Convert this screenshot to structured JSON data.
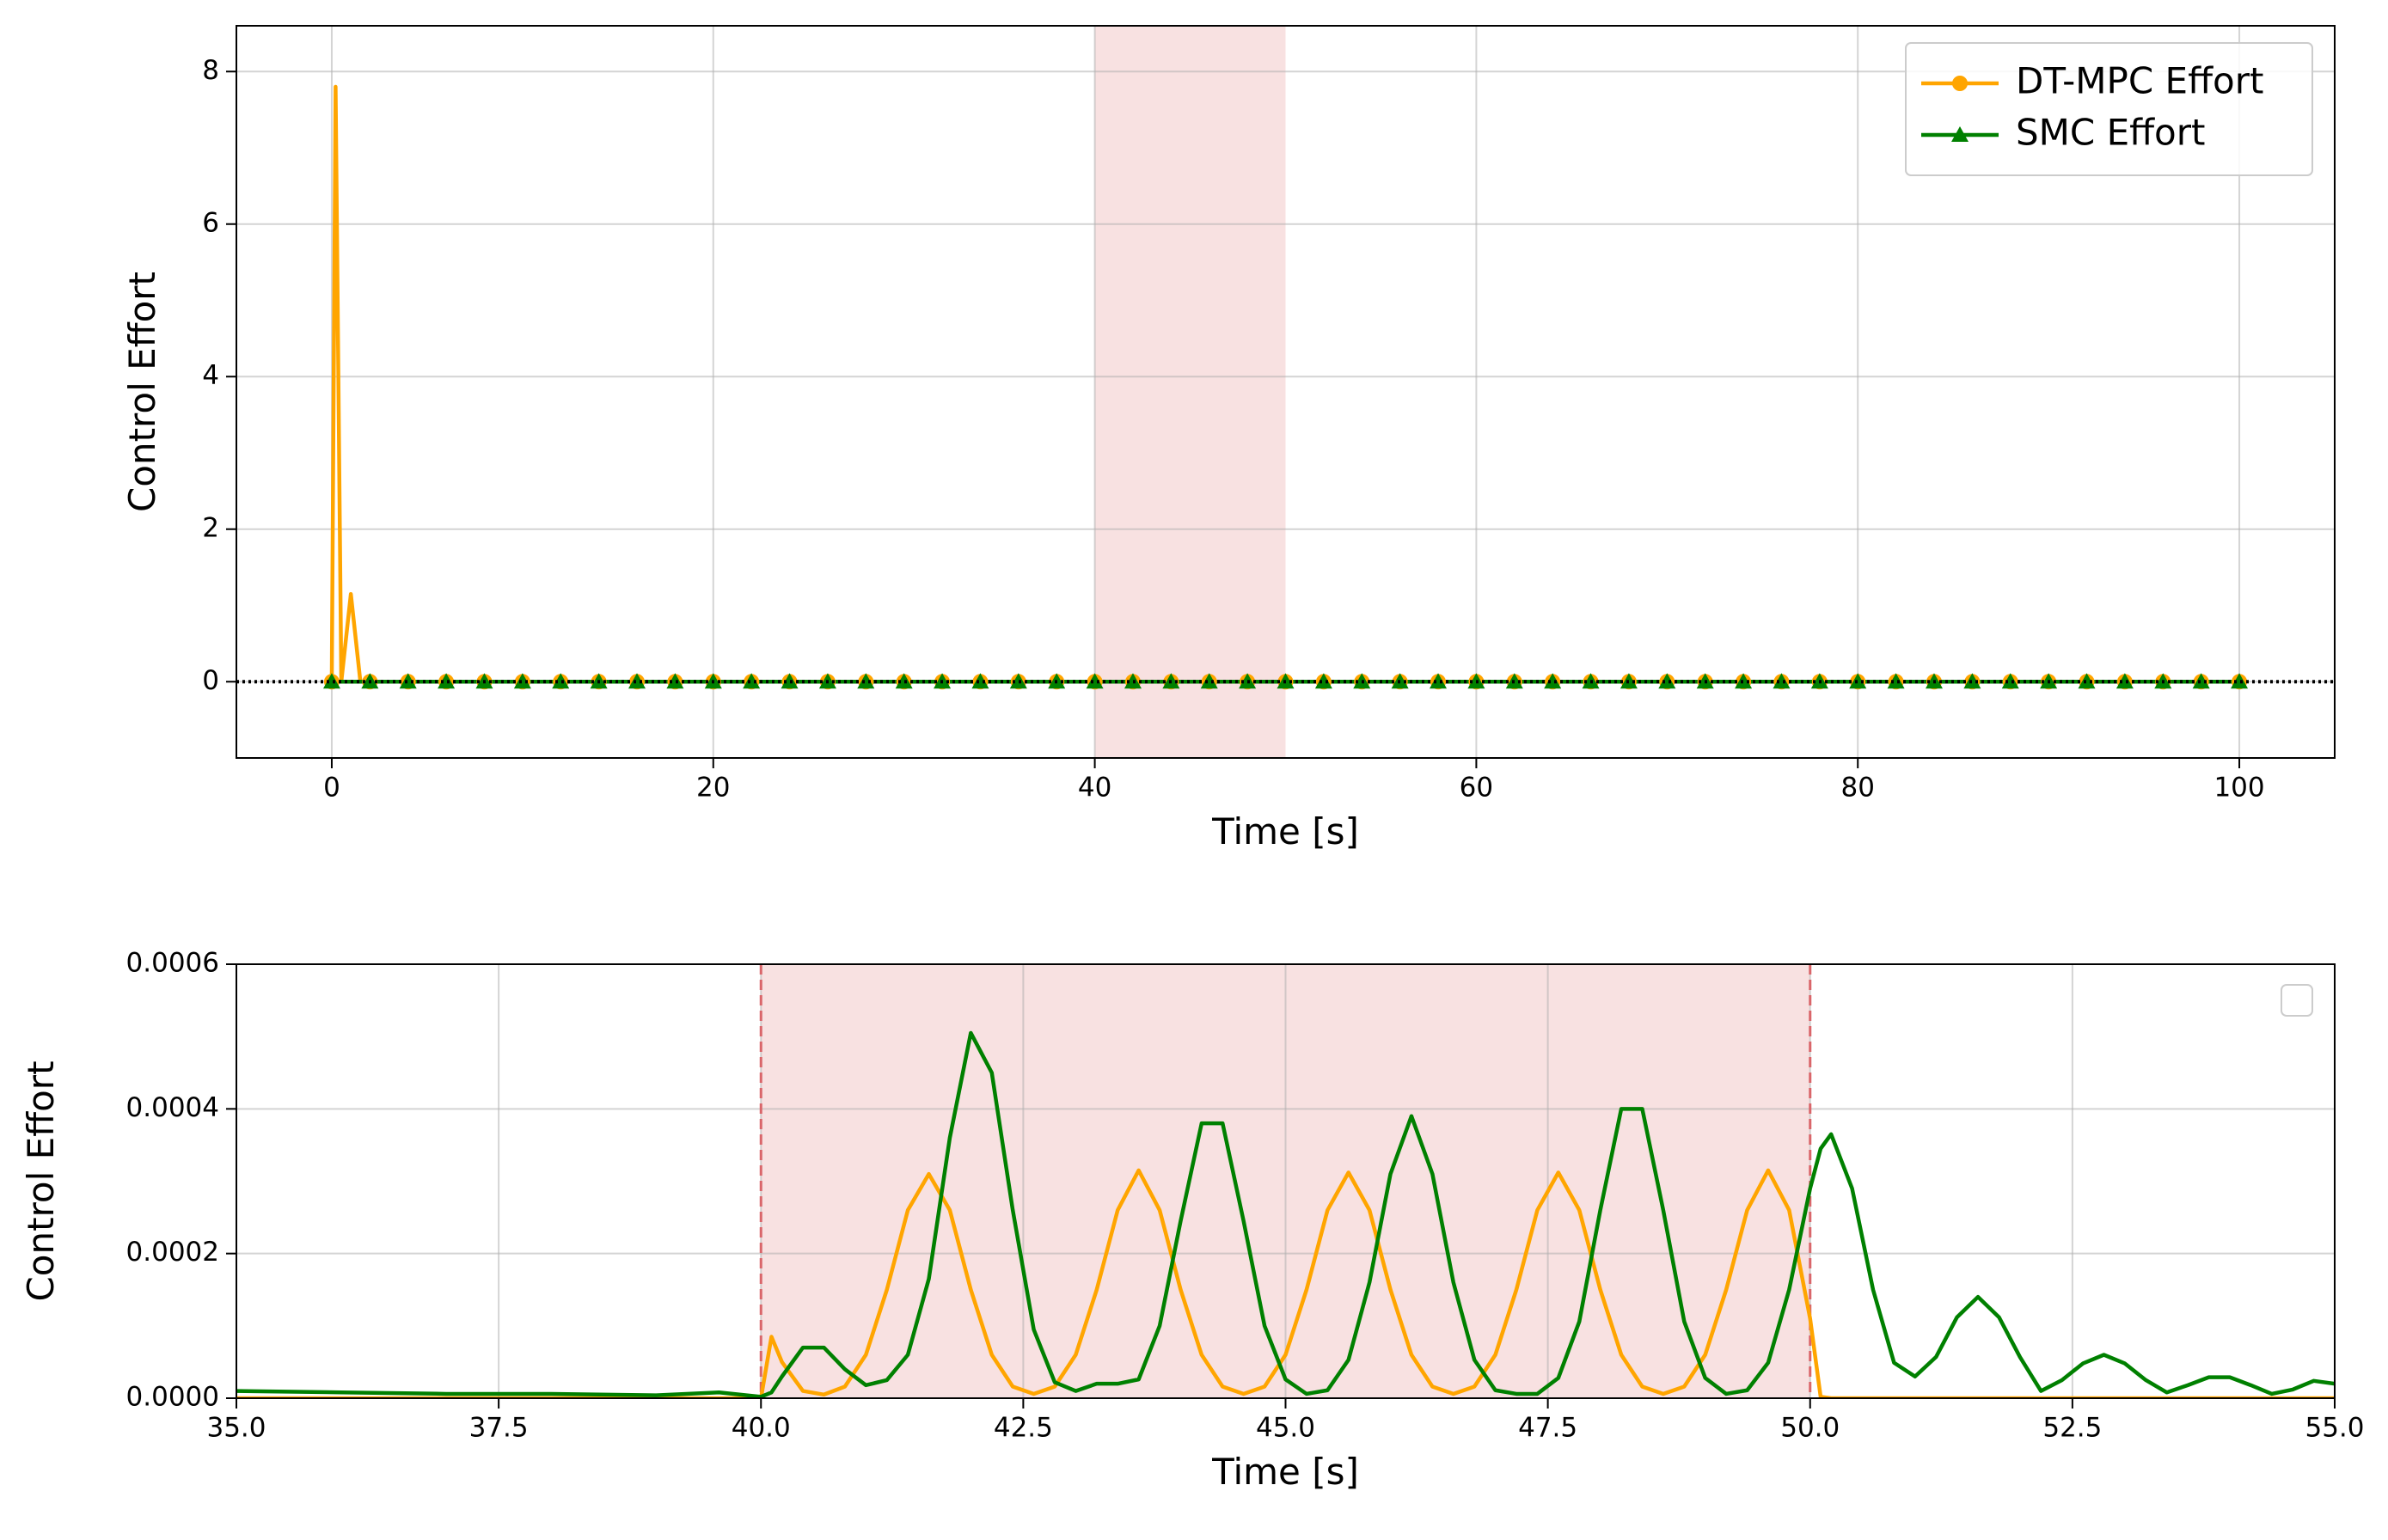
{
  "chart_data": [
    {
      "type": "line",
      "xlabel": "Time [s]",
      "ylabel": "Control Effort",
      "xlim": [
        -5,
        105
      ],
      "ylim": [
        -1,
        8.6
      ],
      "xticks": [
        0,
        20,
        40,
        60,
        80,
        100
      ],
      "yticks": [
        0,
        2,
        4,
        6,
        8
      ],
      "grid": true,
      "legend": "upper right",
      "shade": [
        40,
        50
      ],
      "shade_color": "#f8e1e1",
      "hline": 0,
      "x": [
        0,
        0.2,
        0.5,
        1,
        1.5,
        2,
        4,
        6,
        8,
        10,
        12,
        14,
        16,
        18,
        20,
        22,
        24,
        26,
        28,
        30,
        32,
        34,
        36,
        38,
        40,
        42,
        44,
        46,
        48,
        50,
        52,
        54,
        56,
        58,
        60,
        62,
        64,
        66,
        68,
        70,
        72,
        74,
        76,
        78,
        80,
        82,
        84,
        86,
        88,
        90,
        92,
        94,
        96,
        98,
        100
      ],
      "series": [
        {
          "name": "DT-MPC Effort",
          "color": "#ffa500",
          "marker": "circle",
          "values": [
            0,
            7.8,
            0,
            1.15,
            0,
            0,
            0,
            0,
            0,
            0,
            0,
            0,
            0,
            0,
            0,
            0,
            0,
            0,
            0,
            0,
            0,
            0,
            0,
            0,
            0,
            0,
            0,
            0,
            0,
            0,
            0,
            0,
            0,
            0,
            0,
            0,
            0,
            0,
            0,
            0,
            0,
            0,
            0,
            0,
            0,
            0,
            0,
            0,
            0,
            0,
            0,
            0,
            0,
            0,
            0
          ]
        },
        {
          "name": "SMC Effort",
          "color": "#008000",
          "marker": "triangle",
          "values": [
            0,
            0,
            0,
            0,
            0,
            0,
            0,
            0,
            0,
            0,
            0,
            0,
            0,
            0,
            0,
            0,
            0,
            0,
            0,
            0,
            0,
            0,
            0,
            0,
            0,
            0,
            0,
            0,
            0,
            0,
            0,
            0,
            0,
            0,
            0,
            0,
            0,
            0,
            0,
            0,
            0,
            0,
            0,
            0,
            0,
            0,
            0,
            0,
            0,
            0,
            0,
            0,
            0,
            0,
            0
          ]
        }
      ]
    },
    {
      "type": "line",
      "xlabel": "Time [s]",
      "ylabel": "Control Effort",
      "xlim": [
        35,
        55
      ],
      "ylim": [
        0,
        0.0006
      ],
      "xticks": [
        {
          "value": 35,
          "label": "35.0"
        },
        37.5,
        {
          "value": 40,
          "label": "40.0"
        },
        42.5,
        {
          "value": 45,
          "label": "45.0"
        },
        47.5,
        {
          "value": 50,
          "label": "50.0"
        },
        52.5,
        {
          "value": 55,
          "label": "55.0"
        }
      ],
      "yticks": [
        {
          "value": 0,
          "label": "0.0000"
        },
        {
          "value": 0.0002,
          "label": "0.0002"
        },
        {
          "value": 0.0004,
          "label": "0.0004"
        },
        {
          "value": 0.0006,
          "label": "0.0006"
        }
      ],
      "grid": true,
      "legend": "upper right",
      "shade": [
        40,
        50
      ],
      "shade_color": "#f8e1e1",
      "vlines": [
        40,
        50
      ],
      "vline_color": "#d9666a",
      "x": [
        35,
        36,
        37,
        38,
        39,
        39.6,
        40,
        40.1,
        40.2,
        40.4,
        40.6,
        40.8,
        41.0,
        41.2,
        41.4,
        41.6,
        41.8,
        42.0,
        42.2,
        42.4,
        42.6,
        42.8,
        43.0,
        43.2,
        43.4,
        43.6,
        43.8,
        44.0,
        44.2,
        44.4,
        44.6,
        44.8,
        45.0,
        45.2,
        45.4,
        45.6,
        45.8,
        46.0,
        46.2,
        46.4,
        46.6,
        46.8,
        47.0,
        47.2,
        47.4,
        47.6,
        47.8,
        48.0,
        48.2,
        48.4,
        48.6,
        48.8,
        49.0,
        49.2,
        49.4,
        49.6,
        49.8,
        50.0,
        50.1,
        50.2,
        50.4,
        50.6,
        50.8,
        51.0,
        51.2,
        51.4,
        51.6,
        51.8,
        52.0,
        52.2,
        52.4,
        52.6,
        52.8,
        53.0,
        53.2,
        53.4,
        53.6,
        53.8,
        54.0,
        54.2,
        54.4,
        54.6,
        54.8,
        55.0
      ],
      "series": [
        {
          "color": "#ffa500",
          "values": [
            0,
            0,
            0,
            0,
            0,
            0,
            0,
            8.5e-05,
            5e-05,
            1e-05,
            5e-06,
            1.6e-05,
            6e-05,
            0.00015,
            0.00026,
            0.00031,
            0.00026,
            0.00015,
            6e-05,
            1.6e-05,
            6e-06,
            1.6e-05,
            6e-05,
            0.00015,
            0.00026,
            0.000315,
            0.00026,
            0.00015,
            6e-05,
            1.6e-05,
            6e-06,
            1.6e-05,
            6e-05,
            0.00015,
            0.00026,
            0.000312,
            0.00026,
            0.00015,
            6e-05,
            1.6e-05,
            6e-06,
            1.6e-05,
            6e-05,
            0.00015,
            0.00026,
            0.000312,
            0.00026,
            0.00015,
            6e-05,
            1.6e-05,
            6e-06,
            1.6e-05,
            6e-05,
            0.00015,
            0.00026,
            0.000315,
            0.00026,
            0.00011,
            2e-06,
            0,
            0,
            0,
            0,
            0,
            0,
            0,
            0,
            0,
            0,
            0,
            0,
            0,
            0,
            0,
            0,
            0,
            0,
            0,
            0,
            0,
            0,
            0,
            0,
            0
          ]
        },
        {
          "color": "#008000",
          "values": [
            1e-05,
            8e-06,
            6e-06,
            6e-06,
            4e-06,
            8e-06,
            2e-06,
            8e-06,
            3e-05,
            7e-05,
            7e-05,
            4e-05,
            1.8e-05,
            2.5e-05,
            6e-05,
            0.000165,
            0.00036,
            0.000505,
            0.00045,
            0.00026,
            9.5e-05,
            2.2e-05,
            1e-05,
            2e-05,
            2e-05,
            2.6e-05,
            0.0001,
            0.000245,
            0.00038,
            0.00038,
            0.000245,
            0.0001,
            2.6e-05,
            6e-06,
            1.1e-05,
            5.3e-05,
            0.00016,
            0.00031,
            0.00039,
            0.00031,
            0.00016,
            5.3e-05,
            1.1e-05,
            6e-06,
            6e-06,
            2.8e-05,
            0.000106,
            0.00026,
            0.0004,
            0.0004,
            0.00026,
            0.000106,
            2.8e-05,
            6e-06,
            1.1e-05,
            4.9e-05,
            0.00015,
            0.00029,
            0.000345,
            0.000365,
            0.00029,
            0.00015,
            4.9e-05,
            3e-05,
            5.7e-05,
            0.000112,
            0.00014,
            0.000112,
            5.7e-05,
            1e-05,
            2.5e-05,
            4.8e-05,
            6e-05,
            4.8e-05,
            2.5e-05,
            8e-06,
            1.8e-05,
            2.9e-05,
            2.9e-05,
            1.8e-05,
            6e-06,
            1.2e-05,
            2.4e-05,
            2e-05
          ]
        }
      ]
    }
  ]
}
